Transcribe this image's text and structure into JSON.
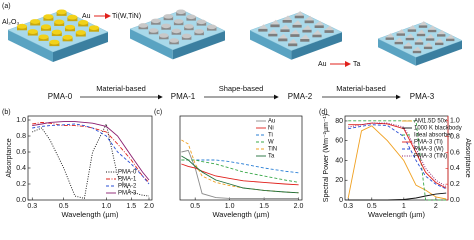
{
  "panel_a": {
    "label": "(a)",
    "substrate": "Al₂O₃",
    "swap1_from": "Au",
    "swap1_to": "Ti(W,TiN)",
    "swap2_from": "Au",
    "swap2_to": "Ta",
    "stages": [
      "PMA-0",
      "PMA-1",
      "PMA-2",
      "PMA-3"
    ],
    "steps": [
      "Material-based",
      "Shape-based",
      "Material-based"
    ]
  },
  "chart_data": [
    {
      "type": "line",
      "label": "(b)",
      "ylabel": "Absorptance",
      "xlabel": "Wavelength (µm)",
      "xscale": "log",
      "legend": "lower right",
      "x": [
        0.3,
        0.35,
        0.4,
        0.5,
        0.6,
        0.7,
        0.8,
        1.0,
        1.2,
        1.5,
        1.8,
        2.0
      ],
      "xlim": [
        0.28,
        2.1
      ],
      "xticks": [
        0.3,
        0.5,
        {
          "value": 1,
          "label": "1.0"
        },
        1.5,
        {
          "value": 2,
          "label": "2.0"
        }
      ],
      "ylim": [
        0,
        1.05
      ],
      "yticks": [
        {
          "value": 0,
          "label": "0.0"
        },
        0.2,
        0.4,
        0.6,
        0.8,
        {
          "value": 1,
          "label": "1.0"
        }
      ],
      "series": [
        {
          "name": "PMA-0",
          "color": "#111111",
          "style": "dotted",
          "values": [
            0.85,
            0.9,
            0.75,
            0.4,
            0.05,
            0.02,
            0.6,
            0.95,
            0.3,
            0.1,
            0.06,
            0.05
          ]
        },
        {
          "name": "PMA-1",
          "color": "#e0201b",
          "style": "dash-dot",
          "values": [
            0.95,
            0.97,
            0.96,
            0.93,
            0.93,
            0.92,
            0.9,
            0.85,
            0.7,
            0.5,
            0.3,
            0.22
          ]
        },
        {
          "name": "PMA-2",
          "color": "#2a4fd6",
          "style": "dashed",
          "values": [
            0.9,
            0.92,
            0.93,
            0.94,
            0.95,
            0.93,
            0.9,
            0.8,
            0.6,
            0.45,
            0.3,
            0.2
          ]
        },
        {
          "name": "PMA-3",
          "color": "#8a1c6e",
          "style": "solid",
          "values": [
            0.93,
            0.95,
            0.97,
            0.98,
            0.98,
            0.97,
            0.96,
            0.92,
            0.8,
            0.55,
            0.35,
            0.25
          ]
        }
      ]
    },
    {
      "type": "line",
      "label": "(c)",
      "xlabel": "Wavelength (µm)",
      "xscale": "linear",
      "legend": "upper right",
      "x": [
        0.3,
        0.4,
        0.5,
        0.6,
        0.8,
        1.0,
        1.2,
        1.5,
        1.8,
        2.0
      ],
      "xlim": [
        0.28,
        2.05
      ],
      "xticks": [
        0.5,
        {
          "value": 1,
          "label": "1.0"
        },
        1.5,
        {
          "value": 2,
          "label": "2.0"
        }
      ],
      "ylim": [
        0,
        1.05
      ],
      "series": [
        {
          "name": "Au",
          "color": "#8c8c8c",
          "style": "solid",
          "values": [
            0.6,
            0.62,
            0.4,
            0.08,
            0.03,
            0.02,
            0.02,
            0.02,
            0.02,
            0.02
          ]
        },
        {
          "name": "Ni",
          "color": "#e0201b",
          "style": "solid",
          "values": [
            0.45,
            0.42,
            0.4,
            0.36,
            0.3,
            0.27,
            0.24,
            0.22,
            0.2,
            0.19
          ]
        },
        {
          "name": "Ti",
          "color": "#2a7fd6",
          "style": "dashed",
          "values": [
            0.5,
            0.5,
            0.5,
            0.5,
            0.5,
            0.48,
            0.45,
            0.4,
            0.36,
            0.34
          ]
        },
        {
          "name": "W",
          "color": "#3aa84a",
          "style": "dashed",
          "values": [
            0.5,
            0.5,
            0.5,
            0.48,
            0.45,
            0.4,
            0.35,
            0.3,
            0.25,
            0.22
          ]
        },
        {
          "name": "TiN",
          "color": "#f0a020",
          "style": "dashed",
          "values": [
            0.75,
            0.7,
            0.45,
            0.3,
            0.22,
            0.18,
            0.15,
            0.12,
            0.1,
            0.09
          ]
        },
        {
          "name": "Ta",
          "color": "#1f6e3a",
          "style": "solid",
          "values": [
            0.55,
            0.5,
            0.42,
            0.35,
            0.25,
            0.2,
            0.15,
            0.12,
            0.1,
            0.09
          ]
        }
      ]
    },
    {
      "type": "line",
      "label": "(d)",
      "ylabel": "Spectral Power (Wm⁻²µm⁻¹)",
      "y2label": "Absorptance",
      "y2color": "#e0201b",
      "xlabel": "Wavelength (µm)",
      "xscale": "log",
      "legend": "upper right",
      "x": [
        0.3,
        0.4,
        0.5,
        0.7,
        1.0,
        1.3,
        1.6,
        2.0,
        2.5
      ],
      "xlim": [
        0.28,
        2.6
      ],
      "xticks": [
        0.3,
        0.5,
        1,
        2
      ],
      "ylim": [
        0,
        85
      ],
      "yticks": [
        0,
        20,
        40,
        60,
        80
      ],
      "y2lim": [
        0,
        1.06
      ],
      "y2ticks": [
        {
          "value": 0,
          "label": "0.0"
        },
        0.2,
        0.4,
        0.6,
        0.8,
        {
          "value": 1,
          "label": "1.0"
        }
      ],
      "series": [
        {
          "name": "AM1.5D 50x",
          "color": "#f0a020",
          "style": "solid",
          "values": [
            2,
            70,
            75,
            60,
            40,
            15,
            10,
            3,
            1
          ]
        },
        {
          "name": "1000 K blackbody",
          "color": "#111111",
          "style": "solid",
          "values": [
            0,
            0,
            0,
            0,
            0.5,
            2,
            4,
            6,
            7
          ]
        },
        {
          "name": "Ideal absorber",
          "color": "#3aa84a",
          "style": "dashed",
          "axis": "y2",
          "values": [
            1,
            1,
            1,
            1,
            1,
            1,
            0,
            0,
            0
          ]
        },
        {
          "name": "PMA-3 (Ti)",
          "color": "#e0201b",
          "style": "solid",
          "axis": "y2",
          "values": [
            0.95,
            0.95,
            0.97,
            0.96,
            0.9,
            0.6,
            0.35,
            0.22,
            0.15
          ]
        },
        {
          "name": "PMA-3 (W)",
          "color": "#2a4fd6",
          "style": "dashed",
          "axis": "y2",
          "values": [
            0.9,
            0.93,
            0.95,
            0.94,
            0.8,
            0.5,
            0.3,
            0.2,
            0.14
          ]
        },
        {
          "name": "PMA-3 (TiN)",
          "color": "#8a1c6e",
          "style": "dotted",
          "axis": "y2",
          "values": [
            0.92,
            0.95,
            0.97,
            0.97,
            0.92,
            0.65,
            0.4,
            0.25,
            0.17
          ]
        }
      ]
    }
  ]
}
